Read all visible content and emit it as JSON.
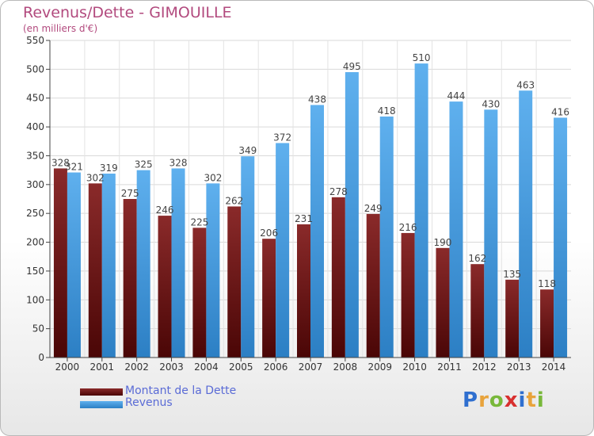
{
  "title": "Revenus/Dette - GIMOUILLE",
  "subtitle": "(en milliers d'€)",
  "logo": {
    "letters": [
      {
        "ch": "P",
        "color": "#2f6fcf"
      },
      {
        "ch": "r",
        "color": "#e8a33b"
      },
      {
        "ch": "o",
        "color": "#78b83a"
      },
      {
        "ch": "x",
        "color": "#d8302f"
      },
      {
        "ch": "i",
        "color": "#2f6fcf"
      },
      {
        "ch": "t",
        "color": "#e8a33b"
      },
      {
        "ch": "i",
        "color": "#78b83a"
      }
    ]
  },
  "chart_data": {
    "type": "bar",
    "categories": [
      "2000",
      "2001",
      "2002",
      "2003",
      "2004",
      "2005",
      "2006",
      "2007",
      "2008",
      "2009",
      "2010",
      "2011",
      "2012",
      "2013",
      "2014"
    ],
    "series": [
      {
        "name": "Montant de la Dette",
        "color": "#7a1a1a",
        "values": [
          328,
          302,
          275,
          246,
          225,
          262,
          206,
          231,
          278,
          249,
          216,
          190,
          162,
          135,
          118
        ]
      },
      {
        "name": "Revenus",
        "color": "#3d96dc",
        "values": [
          321,
          319,
          325,
          328,
          302,
          349,
          372,
          438,
          495,
          418,
          510,
          444,
          430,
          463,
          416
        ]
      }
    ],
    "ylim": [
      0,
      550
    ],
    "yticks": [
      0,
      50,
      100,
      150,
      200,
      250,
      300,
      350,
      400,
      450,
      500,
      550
    ],
    "grid": true,
    "legend": "bottom-left"
  }
}
